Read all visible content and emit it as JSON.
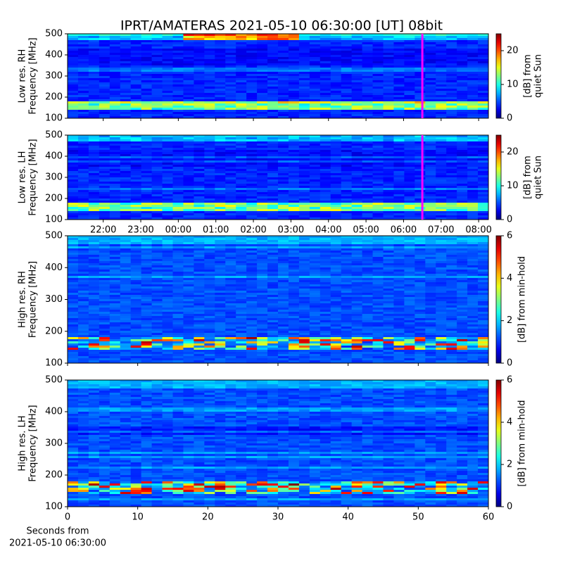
{
  "title": "IPRT/AMATERAS 2021-05-10 06:30:00 [UT]   08bit",
  "chart_data": [
    {
      "type": "heatmap",
      "profile": "low",
      "ylabel": [
        "Low res. RH",
        "Frequency [MHz]"
      ],
      "ylim": [
        100,
        500
      ],
      "yticks": [
        100,
        200,
        300,
        400,
        500
      ],
      "xlim": [
        21.05,
        32.26
      ],
      "xticks": [
        {
          "value": 22,
          "label": "22:00"
        },
        {
          "value": 23,
          "label": "23:00"
        },
        {
          "value": 24,
          "label": "00:00"
        },
        {
          "value": 25,
          "label": "01:00"
        },
        {
          "value": 26,
          "label": "02:00"
        },
        {
          "value": 27,
          "label": "03:00"
        },
        {
          "value": 28,
          "label": "04:00"
        },
        {
          "value": 29,
          "label": "05:00"
        },
        {
          "value": 30,
          "label": "06:00"
        },
        {
          "value": 31,
          "label": "07:00"
        },
        {
          "value": 32,
          "label": "08:00"
        }
      ],
      "show_xtick_labels": false,
      "marker": 30.5,
      "marker_color": "#ff00ff",
      "colorbar": {
        "label": [
          "[dB] from",
          "quiet Sun"
        ],
        "lim": [
          0,
          25
        ],
        "ticks": [
          0,
          10,
          20
        ]
      }
    },
    {
      "type": "heatmap",
      "profile": "low",
      "ylabel": [
        "Low res. LH",
        "Frequency [MHz]"
      ],
      "ylim": [
        100,
        500
      ],
      "yticks": [
        100,
        200,
        300,
        400,
        500
      ],
      "xlim": [
        21.05,
        32.26
      ],
      "xticks": [
        {
          "value": 22,
          "label": "22:00"
        },
        {
          "value": 23,
          "label": "23:00"
        },
        {
          "value": 24,
          "label": "00:00"
        },
        {
          "value": 25,
          "label": "01:00"
        },
        {
          "value": 26,
          "label": "02:00"
        },
        {
          "value": 27,
          "label": "03:00"
        },
        {
          "value": 28,
          "label": "04:00"
        },
        {
          "value": 29,
          "label": "05:00"
        },
        {
          "value": 30,
          "label": "06:00"
        },
        {
          "value": 31,
          "label": "07:00"
        },
        {
          "value": 32,
          "label": "08:00"
        }
      ],
      "show_xtick_labels": true,
      "marker": 30.5,
      "marker_color": "#ff00ff",
      "colorbar": {
        "label": [
          "[dB] from",
          "quiet Sun"
        ],
        "lim": [
          0,
          25
        ],
        "ticks": [
          0,
          10,
          20
        ]
      }
    },
    {
      "type": "heatmap",
      "profile": "high",
      "ylabel": [
        "High res. RH",
        "Frequency [MHz]"
      ],
      "ylim": [
        100,
        500
      ],
      "yticks": [
        100,
        200,
        300,
        400,
        500
      ],
      "xlim": [
        0,
        60
      ],
      "xticks": [
        0,
        10,
        20,
        30,
        40,
        50,
        60
      ],
      "show_xtick_labels": false,
      "colorbar": {
        "label": [
          "[dB] from min-hold"
        ],
        "lim": [
          0,
          6
        ],
        "ticks": [
          0,
          2,
          4,
          6
        ]
      }
    },
    {
      "type": "heatmap",
      "profile": "high",
      "ylabel": [
        "High res. LH",
        "Frequency [MHz]"
      ],
      "ylim": [
        100,
        500
      ],
      "yticks": [
        100,
        200,
        300,
        400,
        500
      ],
      "xlim": [
        0,
        60
      ],
      "xticks": [
        0,
        10,
        20,
        30,
        40,
        50,
        60
      ],
      "show_xtick_labels": true,
      "xlabel": [
        "Seconds from",
        "2021-05-10 06:30:00"
      ],
      "colorbar": {
        "label": [
          "[dB] from min-hold"
        ],
        "lim": [
          0,
          6
        ],
        "ticks": [
          0,
          2,
          4,
          6
        ]
      }
    }
  ]
}
